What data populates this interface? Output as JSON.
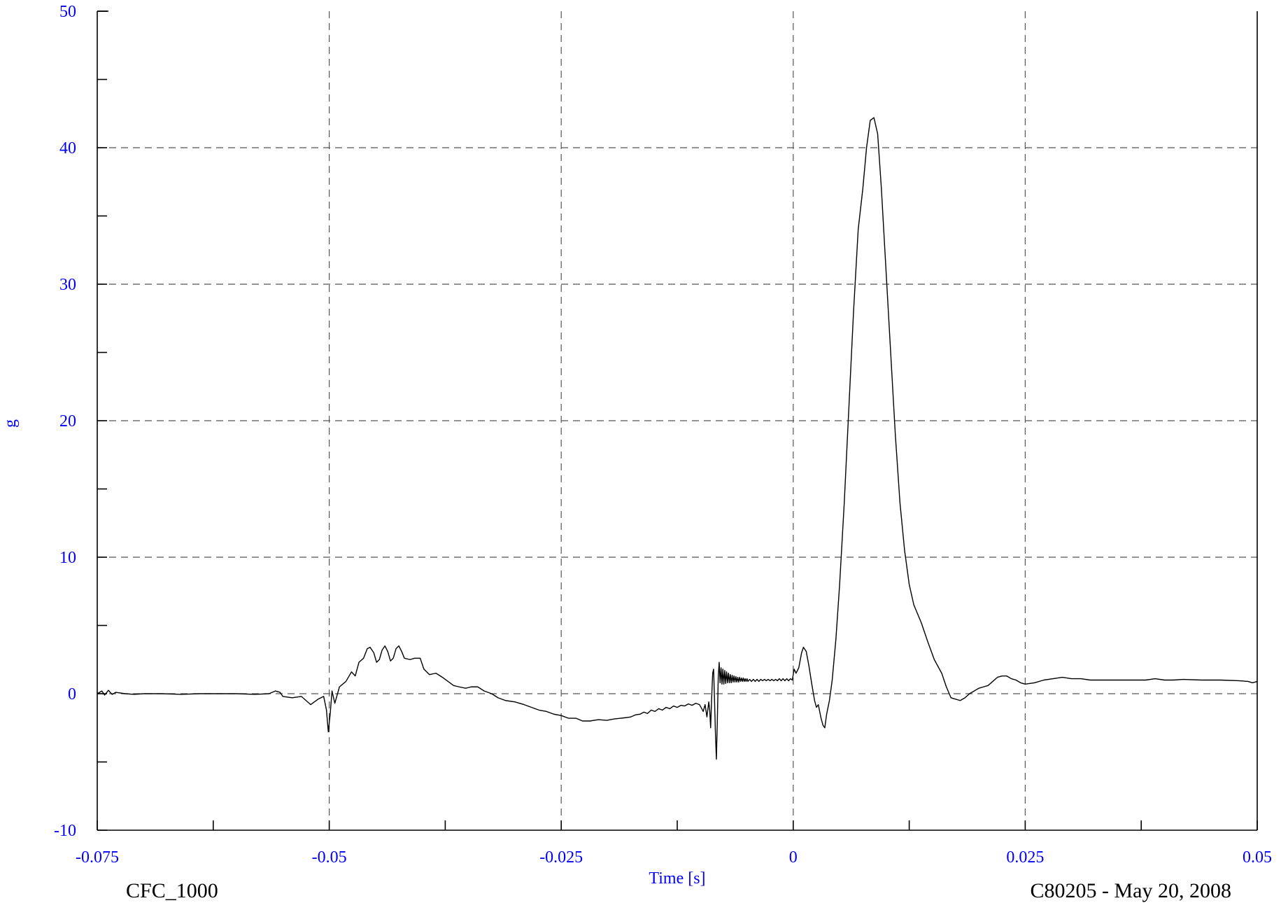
{
  "colors": {
    "tick_label": "#0000ff",
    "axis_title": "#0000ff",
    "series": "#000000",
    "grid": "#555555",
    "background": "#ffffff"
  },
  "footer": {
    "left": "CFC_1000",
    "right": "C80205 - May 20, 2008"
  },
  "chart_data": {
    "type": "line",
    "xlabel": "Time [s]",
    "ylabel": "g",
    "xlim": [
      -0.075,
      0.05
    ],
    "ylim": [
      -10,
      50
    ],
    "x_ticks": [
      -0.075,
      -0.05,
      -0.025,
      0,
      0.025,
      0.05
    ],
    "x_tick_labels": [
      "-0.075",
      "-0.05",
      "-0.025",
      "0",
      "0.025",
      "0.05"
    ],
    "y_ticks": [
      -10,
      0,
      10,
      20,
      30,
      40,
      50
    ],
    "y_tick_labels": [
      "-10",
      "0",
      "10",
      "20",
      "30",
      "40",
      "50"
    ],
    "grid": true,
    "legend": "none",
    "series": [
      {
        "points": [
          [
            -0.075,
            0.0
          ],
          [
            -0.0745,
            0.2
          ],
          [
            -0.0742,
            -0.1
          ],
          [
            -0.0738,
            0.25
          ],
          [
            -0.0734,
            -0.05
          ],
          [
            -0.073,
            0.1
          ],
          [
            -0.072,
            0.0
          ],
          [
            -0.071,
            -0.05
          ],
          [
            -0.07,
            0.0
          ],
          [
            -0.068,
            0.0
          ],
          [
            -0.066,
            -0.05
          ],
          [
            -0.064,
            0.0
          ],
          [
            -0.062,
            0.0
          ],
          [
            -0.06,
            0.0
          ],
          [
            -0.058,
            -0.05
          ],
          [
            -0.0565,
            0.0
          ],
          [
            -0.0558,
            0.2
          ],
          [
            -0.0553,
            0.1
          ],
          [
            -0.055,
            -0.2
          ],
          [
            -0.054,
            -0.3
          ],
          [
            -0.053,
            -0.2
          ],
          [
            -0.052,
            -0.8
          ],
          [
            -0.0512,
            -0.4
          ],
          [
            -0.0506,
            -0.2
          ],
          [
            -0.0503,
            -1.2
          ],
          [
            -0.0501,
            -2.8
          ],
          [
            -0.0499,
            -1.5
          ],
          [
            -0.0497,
            0.2
          ],
          [
            -0.0494,
            -0.7
          ],
          [
            -0.0489,
            0.5
          ],
          [
            -0.0482,
            0.9
          ],
          [
            -0.0476,
            1.6
          ],
          [
            -0.0472,
            1.3
          ],
          [
            -0.0468,
            2.3
          ],
          [
            -0.0463,
            2.6
          ],
          [
            -0.0459,
            3.3
          ],
          [
            -0.0456,
            3.4
          ],
          [
            -0.0452,
            3.0
          ],
          [
            -0.0449,
            2.3
          ],
          [
            -0.0446,
            2.5
          ],
          [
            -0.0443,
            3.2
          ],
          [
            -0.044,
            3.5
          ],
          [
            -0.0437,
            3.1
          ],
          [
            -0.0434,
            2.4
          ],
          [
            -0.0431,
            2.6
          ],
          [
            -0.0428,
            3.3
          ],
          [
            -0.0425,
            3.5
          ],
          [
            -0.0422,
            3.1
          ],
          [
            -0.0419,
            2.6
          ],
          [
            -0.0413,
            2.5
          ],
          [
            -0.0408,
            2.6
          ],
          [
            -0.0402,
            2.6
          ],
          [
            -0.0398,
            1.8
          ],
          [
            -0.0392,
            1.4
          ],
          [
            -0.0385,
            1.5
          ],
          [
            -0.0378,
            1.2
          ],
          [
            -0.0372,
            0.9
          ],
          [
            -0.0366,
            0.6
          ],
          [
            -0.036,
            0.5
          ],
          [
            -0.0353,
            0.4
          ],
          [
            -0.0347,
            0.5
          ],
          [
            -0.034,
            0.5
          ],
          [
            -0.0333,
            0.2
          ],
          [
            -0.0325,
            0.0
          ],
          [
            -0.0318,
            -0.3
          ],
          [
            -0.031,
            -0.5
          ],
          [
            -0.03,
            -0.6
          ],
          [
            -0.029,
            -0.8
          ],
          [
            -0.0282,
            -1.0
          ],
          [
            -0.0274,
            -1.2
          ],
          [
            -0.0266,
            -1.3
          ],
          [
            -0.0258,
            -1.5
          ],
          [
            -0.025,
            -1.6
          ],
          [
            -0.0242,
            -1.8
          ],
          [
            -0.0234,
            -1.8
          ],
          [
            -0.0227,
            -2.0
          ],
          [
            -0.0219,
            -2.0
          ],
          [
            -0.021,
            -1.9
          ],
          [
            -0.0201,
            -1.95
          ],
          [
            -0.0193,
            -1.85
          ],
          [
            -0.0186,
            -1.8
          ],
          [
            -0.018,
            -1.75
          ],
          [
            -0.0175,
            -1.7
          ],
          [
            -0.017,
            -1.55
          ],
          [
            -0.0165,
            -1.5
          ],
          [
            -0.0161,
            -1.35
          ],
          [
            -0.0157,
            -1.45
          ],
          [
            -0.0153,
            -1.2
          ],
          [
            -0.0149,
            -1.3
          ],
          [
            -0.0145,
            -1.1
          ],
          [
            -0.0141,
            -1.2
          ],
          [
            -0.0137,
            -1.0
          ],
          [
            -0.0133,
            -1.1
          ],
          [
            -0.0129,
            -0.9
          ],
          [
            -0.0125,
            -1.0
          ],
          [
            -0.0121,
            -0.85
          ],
          [
            -0.0117,
            -0.9
          ],
          [
            -0.0113,
            -0.75
          ],
          [
            -0.0109,
            -0.85
          ],
          [
            -0.0105,
            -0.7
          ],
          [
            -0.0101,
            -0.8
          ],
          [
            -0.0097,
            -1.3
          ],
          [
            -0.0095,
            -0.8
          ],
          [
            -0.0093,
            -1.7
          ],
          [
            -0.0091,
            -0.6
          ],
          [
            -0.009,
            -1.2
          ],
          [
            -0.0089,
            -2.5
          ],
          [
            -0.0088,
            -0.5
          ],
          [
            -0.00868,
            1.5
          ],
          [
            -0.00858,
            1.8
          ],
          [
            -0.00848,
            -0.5
          ],
          [
            -0.00838,
            -3.0
          ],
          [
            -0.00828,
            -4.8
          ],
          [
            -0.00818,
            -2.0
          ],
          [
            -0.00808,
            1.2
          ],
          [
            -0.00798,
            2.3
          ],
          [
            -0.00788,
            0.8
          ],
          [
            -0.00778,
            1.9
          ],
          [
            -0.00768,
            0.7
          ],
          [
            -0.00758,
            1.8
          ],
          [
            -0.00748,
            0.7
          ],
          [
            -0.00738,
            1.7
          ],
          [
            -0.00728,
            0.75
          ],
          [
            -0.00718,
            1.6
          ],
          [
            -0.00708,
            0.8
          ],
          [
            -0.00698,
            1.5
          ],
          [
            -0.00688,
            0.8
          ],
          [
            -0.00678,
            1.4
          ],
          [
            -0.00668,
            0.8
          ],
          [
            -0.00658,
            1.35
          ],
          [
            -0.00648,
            0.85
          ],
          [
            -0.00638,
            1.3
          ],
          [
            -0.00628,
            0.85
          ],
          [
            -0.00618,
            1.25
          ],
          [
            -0.00608,
            0.85
          ],
          [
            -0.00598,
            1.2
          ],
          [
            -0.00588,
            0.85
          ],
          [
            -0.00578,
            1.2
          ],
          [
            -0.00568,
            0.9
          ],
          [
            -0.00558,
            1.15
          ],
          [
            -0.00548,
            0.9
          ],
          [
            -0.00538,
            1.15
          ],
          [
            -0.00528,
            0.9
          ],
          [
            -0.00518,
            1.1
          ],
          [
            -0.00508,
            0.9
          ],
          [
            -0.00498,
            1.1
          ],
          [
            -0.00488,
            0.9
          ],
          [
            -0.0047,
            1.05
          ],
          [
            -0.0045,
            0.9
          ],
          [
            -0.0043,
            1.05
          ],
          [
            -0.0041,
            0.9
          ],
          [
            -0.0039,
            1.05
          ],
          [
            -0.0037,
            0.9
          ],
          [
            -0.0035,
            1.05
          ],
          [
            -0.0033,
            0.95
          ],
          [
            -0.0031,
            1.05
          ],
          [
            -0.0029,
            0.95
          ],
          [
            -0.0027,
            1.05
          ],
          [
            -0.0025,
            0.95
          ],
          [
            -0.0023,
            1.05
          ],
          [
            -0.0021,
            0.95
          ],
          [
            -0.0019,
            1.05
          ],
          [
            -0.0017,
            0.95
          ],
          [
            -0.0015,
            1.1
          ],
          [
            -0.0013,
            0.95
          ],
          [
            -0.0011,
            1.1
          ],
          [
            -0.0009,
            0.95
          ],
          [
            -0.0007,
            1.1
          ],
          [
            -0.0005,
            0.95
          ],
          [
            -0.0003,
            1.1
          ],
          [
            -0.0001,
            1.0
          ],
          [
            0.0001,
            1.8
          ],
          [
            0.0003,
            1.5
          ],
          [
            0.0006,
            1.9
          ],
          [
            0.0009,
            3.0
          ],
          [
            0.0011,
            3.4
          ],
          [
            0.0014,
            3.1
          ],
          [
            0.0017,
            2.0
          ],
          [
            0.002,
            0.7
          ],
          [
            0.0023,
            -0.5
          ],
          [
            0.0025,
            -1.0
          ],
          [
            0.0027,
            -0.8
          ],
          [
            0.003,
            -1.8
          ],
          [
            0.0032,
            -2.3
          ],
          [
            0.0034,
            -2.5
          ],
          [
            0.0036,
            -1.5
          ],
          [
            0.0039,
            -0.5
          ],
          [
            0.0042,
            1.0
          ],
          [
            0.0046,
            4.0
          ],
          [
            0.005,
            8.0
          ],
          [
            0.0055,
            14.0
          ],
          [
            0.006,
            21.0
          ],
          [
            0.0065,
            28.0
          ],
          [
            0.007,
            34.0
          ],
          [
            0.0075,
            37.0
          ],
          [
            0.0079,
            40.0
          ],
          [
            0.0083,
            42.0
          ],
          [
            0.0087,
            42.2
          ],
          [
            0.0091,
            41.0
          ],
          [
            0.0095,
            37.0
          ],
          [
            0.01,
            31.0
          ],
          [
            0.0105,
            25.0
          ],
          [
            0.011,
            19.0
          ],
          [
            0.0115,
            14.0
          ],
          [
            0.012,
            10.5
          ],
          [
            0.0125,
            8.0
          ],
          [
            0.013,
            6.5
          ],
          [
            0.0138,
            5.2
          ],
          [
            0.0145,
            3.8
          ],
          [
            0.0152,
            2.5
          ],
          [
            0.016,
            1.5
          ],
          [
            0.0165,
            0.5
          ],
          [
            0.017,
            -0.3
          ],
          [
            0.0175,
            -0.4
          ],
          [
            0.018,
            -0.5
          ],
          [
            0.0185,
            -0.3
          ],
          [
            0.019,
            0.0
          ],
          [
            0.0195,
            0.2
          ],
          [
            0.02,
            0.4
          ],
          [
            0.0205,
            0.5
          ],
          [
            0.021,
            0.6
          ],
          [
            0.0215,
            0.9
          ],
          [
            0.022,
            1.2
          ],
          [
            0.0225,
            1.3
          ],
          [
            0.023,
            1.3
          ],
          [
            0.0235,
            1.1
          ],
          [
            0.024,
            1.0
          ],
          [
            0.0245,
            0.8
          ],
          [
            0.025,
            0.7
          ],
          [
            0.026,
            0.8
          ],
          [
            0.027,
            1.0
          ],
          [
            0.028,
            1.1
          ],
          [
            0.029,
            1.2
          ],
          [
            0.03,
            1.1
          ],
          [
            0.031,
            1.1
          ],
          [
            0.032,
            1.0
          ],
          [
            0.0335,
            1.0
          ],
          [
            0.035,
            1.0
          ],
          [
            0.0365,
            1.0
          ],
          [
            0.038,
            1.0
          ],
          [
            0.039,
            1.1
          ],
          [
            0.04,
            1.0
          ],
          [
            0.041,
            1.0
          ],
          [
            0.042,
            1.05
          ],
          [
            0.044,
            1.0
          ],
          [
            0.046,
            1.0
          ],
          [
            0.048,
            0.95
          ],
          [
            0.049,
            0.9
          ],
          [
            0.0495,
            0.8
          ],
          [
            0.05,
            0.9
          ]
        ]
      }
    ]
  }
}
